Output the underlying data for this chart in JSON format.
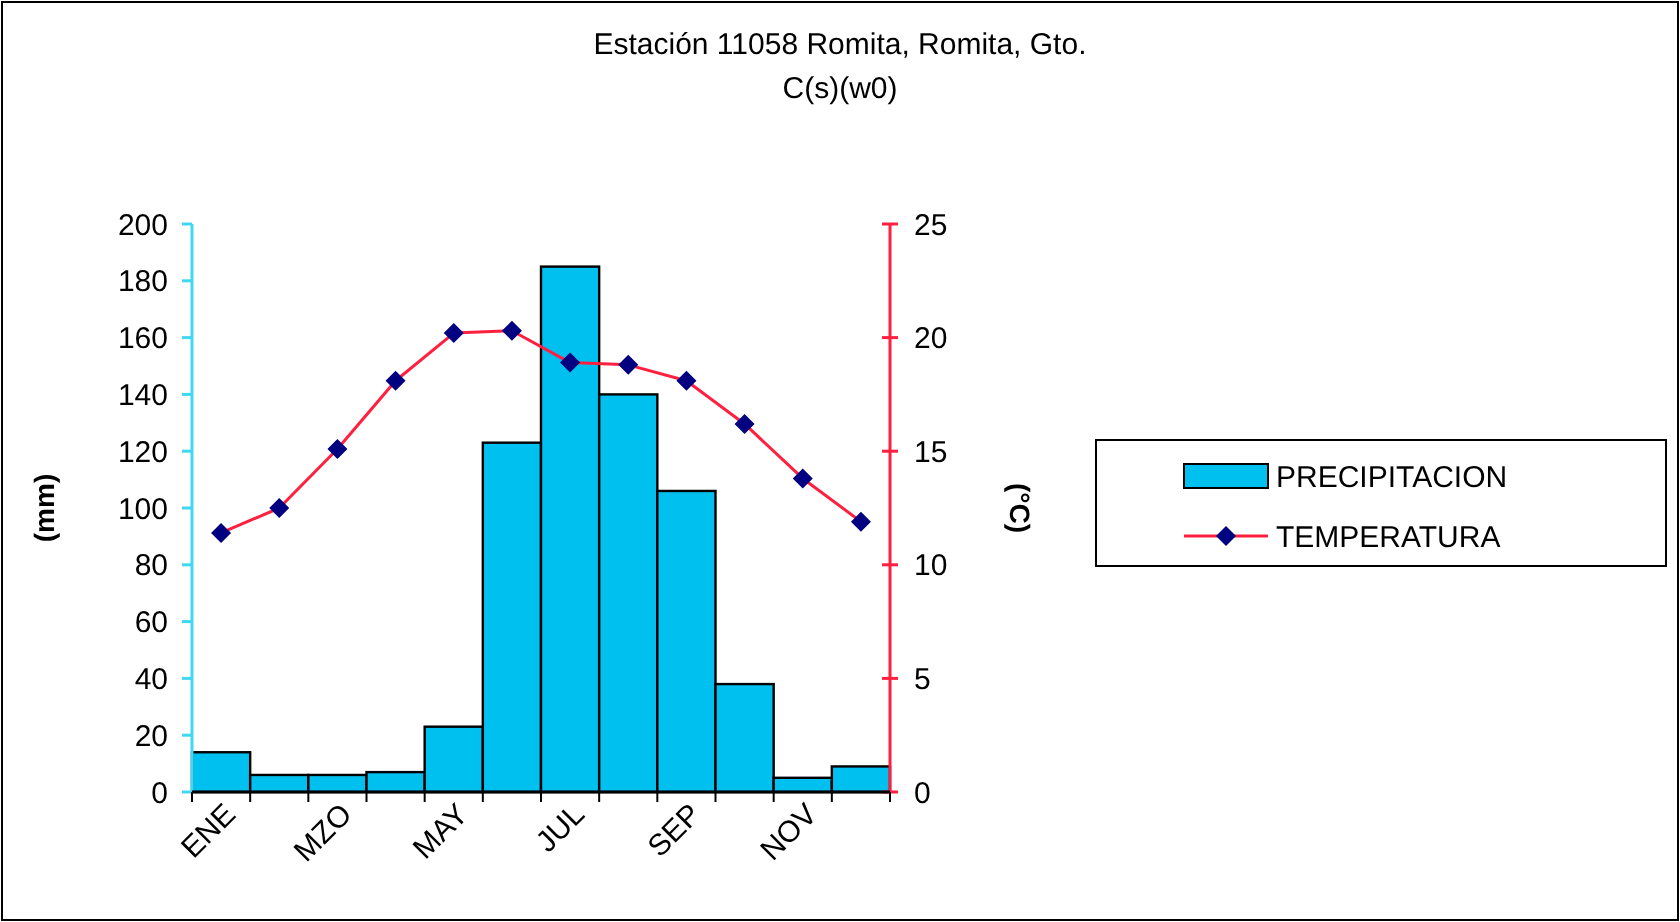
{
  "chart_data": {
    "type": "bar",
    "title": "Estación 11058 Romita, Romita, Gto.",
    "subtitle": "C(s)(w0)",
    "ylabel": "(mm)",
    "y2label": "(°C)",
    "categories": [
      "ENE",
      null,
      "MZO",
      null,
      "MAY",
      null,
      "JUL",
      null,
      "SEP",
      null,
      "NOV",
      null
    ],
    "series": [
      {
        "name": "PRECIPITACION",
        "color": "#00c0f0",
        "values": [
          14,
          6,
          6,
          7,
          23,
          123,
          185,
          140,
          106,
          38,
          5,
          9
        ]
      },
      {
        "name": "TEMPERATURA",
        "type": "line",
        "axis": "y2",
        "color": "#ff2040",
        "marker": "diamond",
        "values": [
          11.4,
          12.5,
          15.1,
          18.1,
          20.2,
          20.3,
          18.9,
          18.8,
          18.1,
          16.2,
          13.8,
          11.9
        ]
      }
    ],
    "ylim": [
      0,
      200
    ],
    "yticks": [
      0,
      20,
      40,
      60,
      80,
      100,
      120,
      140,
      160,
      180,
      200
    ],
    "y2lim": [
      0,
      25
    ],
    "y2ticks": [
      0,
      5,
      10,
      15,
      20,
      25
    ],
    "legend": "right",
    "grid": false
  }
}
